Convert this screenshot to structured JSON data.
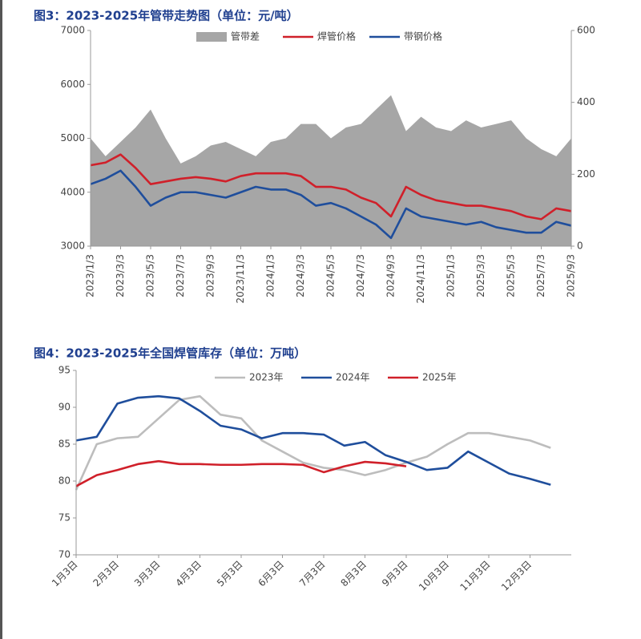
{
  "chart_data": [
    {
      "type": "line",
      "title": "图3：2023-2025年管带走势图（单位：元/吨）",
      "categories": [
        "2023/1/3",
        null,
        "2023/3/3",
        null,
        "2023/5/3",
        null,
        "2023/7/3",
        null,
        "2023/9/3",
        null,
        "2023/11/3",
        null,
        "2024/1/3",
        null,
        "2024/3/3",
        null,
        "2024/5/3",
        null,
        "2024/7/3",
        null,
        "2024/9/3",
        null,
        "2024/11/3",
        null,
        "2025/1/3",
        null,
        "2025/3/3",
        null,
        "2025/5/3",
        null,
        "2025/7/3",
        null,
        "2025/9/3"
      ],
      "series": [
        {
          "name": "管带差",
          "type": "area",
          "color": "#a6a6a6",
          "axis": "y2",
          "values": [
            300,
            250,
            290,
            330,
            380,
            300,
            230,
            250,
            280,
            290,
            270,
            250,
            290,
            300,
            340,
            340,
            300,
            330,
            340,
            380,
            420,
            320,
            360,
            330,
            320,
            350,
            330,
            340,
            350,
            300,
            270,
            250,
            300
          ]
        },
        {
          "name": "焊管价格",
          "color": "#d0202a",
          "values": [
            4500,
            4550,
            4700,
            4450,
            4150,
            4200,
            4250,
            4280,
            4250,
            4200,
            4300,
            4350,
            4350,
            4350,
            4300,
            4100,
            4100,
            4050,
            3900,
            3800,
            3550,
            4100,
            3950,
            3850,
            3800,
            3750,
            3750,
            3700,
            3650,
            3550,
            3500,
            3700,
            3650
          ]
        },
        {
          "name": "带钢价格",
          "color": "#1f4e9c",
          "values": [
            4150,
            4250,
            4400,
            4100,
            3750,
            3900,
            4000,
            4000,
            3950,
            3900,
            4000,
            4100,
            4050,
            4050,
            3950,
            3750,
            3800,
            3700,
            3550,
            3400,
            3150,
            3700,
            3550,
            3500,
            3450,
            3400,
            3450,
            3350,
            3300,
            3250,
            3250,
            3450,
            3380
          ]
        }
      ],
      "ylim": [
        3000,
        7000
      ],
      "yticks": [
        3000,
        4000,
        5000,
        6000,
        7000
      ],
      "y2lim": [
        0,
        600
      ],
      "y2ticks": [
        0,
        200,
        400,
        600
      ]
    },
    {
      "type": "line",
      "title": "图4：2023-2025年全国焊管库存（单位：万吨）",
      "categories": [
        "1月3日",
        null,
        "2月3日",
        null,
        "3月3日",
        null,
        "4月3日",
        null,
        "5月3日",
        null,
        "6月3日",
        null,
        "7月3日",
        null,
        "8月3日",
        null,
        "9月3日",
        null,
        "10月3日",
        null,
        "11月3日",
        null,
        "12月3日",
        null
      ],
      "series": [
        {
          "name": "2023年",
          "color": "#bdbdbd",
          "values": [
            78.8,
            85.0,
            85.8,
            86.0,
            88.5,
            91.0,
            91.5,
            89.0,
            88.5,
            85.5,
            84.0,
            82.5,
            81.8,
            81.5,
            80.8,
            81.5,
            82.5,
            83.3,
            85.0,
            86.5,
            86.5,
            86.0,
            85.5,
            84.5
          ]
        },
        {
          "name": "2024年",
          "color": "#1f4e9c",
          "values": [
            85.5,
            86.0,
            90.5,
            91.3,
            91.5,
            91.2,
            89.5,
            87.5,
            87.0,
            85.8,
            86.5,
            86.5,
            86.3,
            84.8,
            85.3,
            83.5,
            82.6,
            81.5,
            81.8,
            84.0,
            82.5,
            81.0,
            80.3,
            79.5
          ]
        },
        {
          "name": "2025年",
          "color": "#d0202a",
          "values": [
            79.3,
            80.8,
            81.5,
            82.3,
            82.7,
            82.3,
            82.3,
            82.2,
            82.2,
            82.3,
            82.3,
            82.2,
            81.2,
            82.0,
            82.6,
            82.4,
            82.0,
            null,
            null,
            null,
            null,
            null,
            null,
            null
          ]
        }
      ],
      "ylim": [
        70,
        95
      ],
      "yticks": [
        70,
        75,
        80,
        85,
        90,
        95
      ]
    }
  ]
}
